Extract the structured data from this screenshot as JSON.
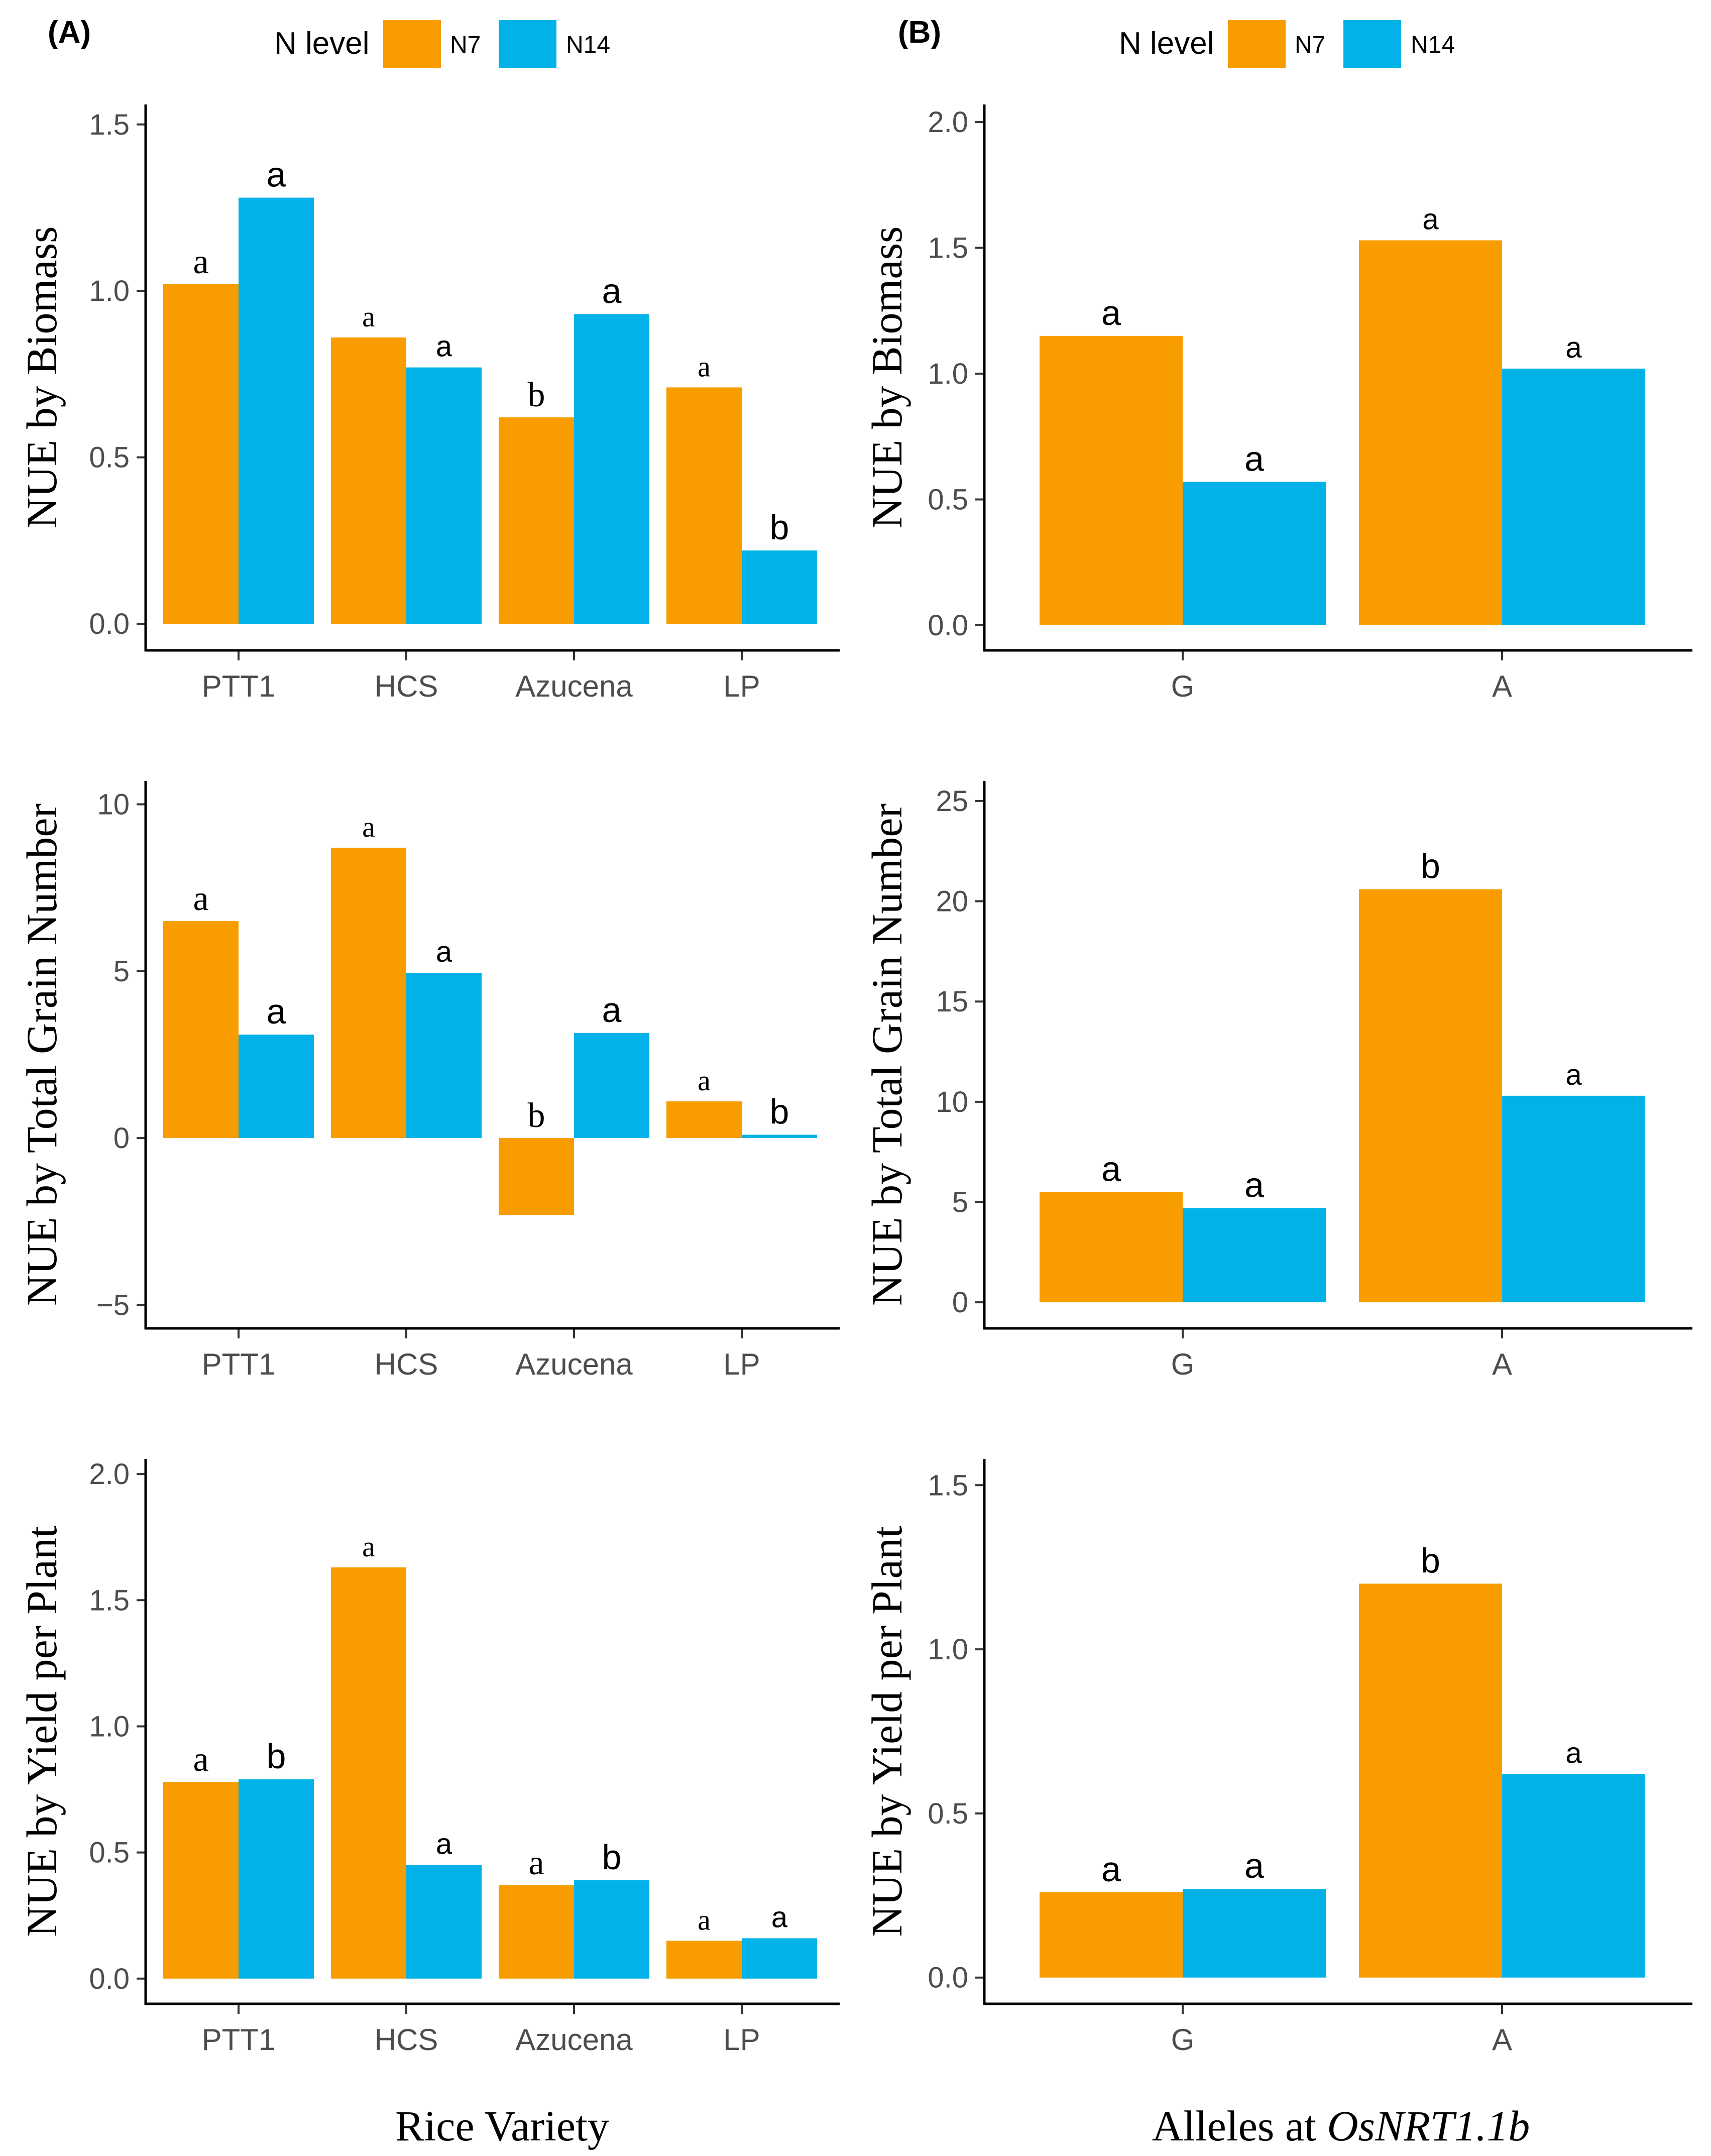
{
  "colors": {
    "N7": "#F89C00",
    "N14": "#00B2E8",
    "axis": "#000000",
    "tick_text": "#4D4D4D"
  },
  "panels": [
    {
      "label": "(A)"
    },
    {
      "label": "(B)"
    }
  ],
  "legend": {
    "title": "N level",
    "items": [
      {
        "key": "N7",
        "label": "N7"
      },
      {
        "key": "N14",
        "label": "N14"
      }
    ]
  },
  "xlabels": {
    "left": "Rice Variety",
    "right_prefix": "Alleles at ",
    "right_gene": "OsNRT1.1b"
  },
  "chart_data": [
    {
      "type": "bar",
      "panel": "A",
      "row": 0,
      "ylabel": "NUE by Biomass",
      "categories": [
        "PTT1",
        "HCS",
        "Azucena",
        "LP"
      ],
      "ylim": [
        -0.08,
        1.56
      ],
      "yticks": [
        0.0,
        0.5,
        1.0,
        1.5
      ],
      "ytick_labels": [
        "0.0",
        "0.5",
        "1.0",
        "1.5"
      ],
      "series": [
        {
          "name": "N7",
          "values": [
            1.02,
            0.86,
            0.62,
            0.71
          ],
          "letters": [
            "a",
            "a",
            "b",
            "a"
          ]
        },
        {
          "name": "N14",
          "values": [
            1.28,
            0.77,
            0.93,
            0.22
          ],
          "letters": [
            "a",
            "a",
            "a",
            "b"
          ]
        }
      ]
    },
    {
      "type": "bar",
      "panel": "B",
      "row": 0,
      "ylabel": "NUE by Biomass",
      "categories": [
        "G",
        "A"
      ],
      "ylim": [
        -0.1,
        2.07
      ],
      "yticks": [
        0.0,
        0.5,
        1.0,
        1.5,
        2.0
      ],
      "ytick_labels": [
        "0.0",
        "0.5",
        "1.0",
        "1.5",
        "2.0"
      ],
      "series": [
        {
          "name": "N7",
          "values": [
            1.15,
            1.53
          ],
          "letters": [
            "a",
            "a"
          ]
        },
        {
          "name": "N14",
          "values": [
            0.57,
            1.02
          ],
          "letters": [
            "a",
            "a"
          ]
        }
      ]
    },
    {
      "type": "bar",
      "panel": "A",
      "row": 1,
      "ylabel": "NUE by Total Grain Number",
      "categories": [
        "PTT1",
        "HCS",
        "Azucena",
        "LP"
      ],
      "ylim": [
        -5.7,
        10.7
      ],
      "yticks": [
        -5,
        0,
        5,
        10
      ],
      "ytick_labels": [
        "−5",
        "0",
        "5",
        "10"
      ],
      "series": [
        {
          "name": "N7",
          "values": [
            6.5,
            8.7,
            -2.3,
            1.1
          ],
          "letters": [
            "a",
            "a",
            "b",
            "a"
          ]
        },
        {
          "name": "N14",
          "values": [
            3.1,
            4.95,
            3.15,
            0.1
          ],
          "letters": [
            "a",
            "a",
            "a",
            "b"
          ]
        }
      ]
    },
    {
      "type": "bar",
      "panel": "B",
      "row": 1,
      "ylabel": "NUE by Total Grain Number",
      "categories": [
        "G",
        "A"
      ],
      "ylim": [
        -1.3,
        26.0
      ],
      "yticks": [
        0,
        5,
        10,
        15,
        20,
        25
      ],
      "ytick_labels": [
        "0",
        "5",
        "10",
        "15",
        "20",
        "25"
      ],
      "series": [
        {
          "name": "N7",
          "values": [
            5.5,
            20.6
          ],
          "letters": [
            "a",
            "b"
          ]
        },
        {
          "name": "N14",
          "values": [
            4.7,
            10.3
          ],
          "letters": [
            "a",
            "a"
          ]
        }
      ]
    },
    {
      "type": "bar",
      "panel": "A",
      "row": 2,
      "ylabel": "NUE by Yield per Plant",
      "categories": [
        "PTT1",
        "HCS",
        "Azucena",
        "LP"
      ],
      "ylim": [
        -0.1,
        2.06
      ],
      "yticks": [
        0.0,
        0.5,
        1.0,
        1.5,
        2.0
      ],
      "ytick_labels": [
        "0.0",
        "0.5",
        "1.0",
        "1.5",
        "2.0"
      ],
      "series": [
        {
          "name": "N7",
          "values": [
            0.78,
            1.63,
            0.37,
            0.15
          ],
          "letters": [
            "a",
            "a",
            "a",
            "a"
          ]
        },
        {
          "name": "N14",
          "values": [
            0.79,
            0.45,
            0.39,
            0.16
          ],
          "letters": [
            "b",
            "a",
            "b",
            "a"
          ]
        }
      ]
    },
    {
      "type": "bar",
      "panel": "B",
      "row": 2,
      "ylabel": "NUE by Yield per Plant",
      "categories": [
        "G",
        "A"
      ],
      "ylim": [
        -0.08,
        1.58
      ],
      "yticks": [
        0.0,
        0.5,
        1.0,
        1.5
      ],
      "ytick_labels": [
        "0.0",
        "0.5",
        "1.0",
        "1.5"
      ],
      "series": [
        {
          "name": "N7",
          "values": [
            0.26,
            1.2
          ],
          "letters": [
            "a",
            "b"
          ]
        },
        {
          "name": "N14",
          "values": [
            0.27,
            0.62
          ],
          "letters": [
            "a",
            "a"
          ]
        }
      ]
    }
  ]
}
